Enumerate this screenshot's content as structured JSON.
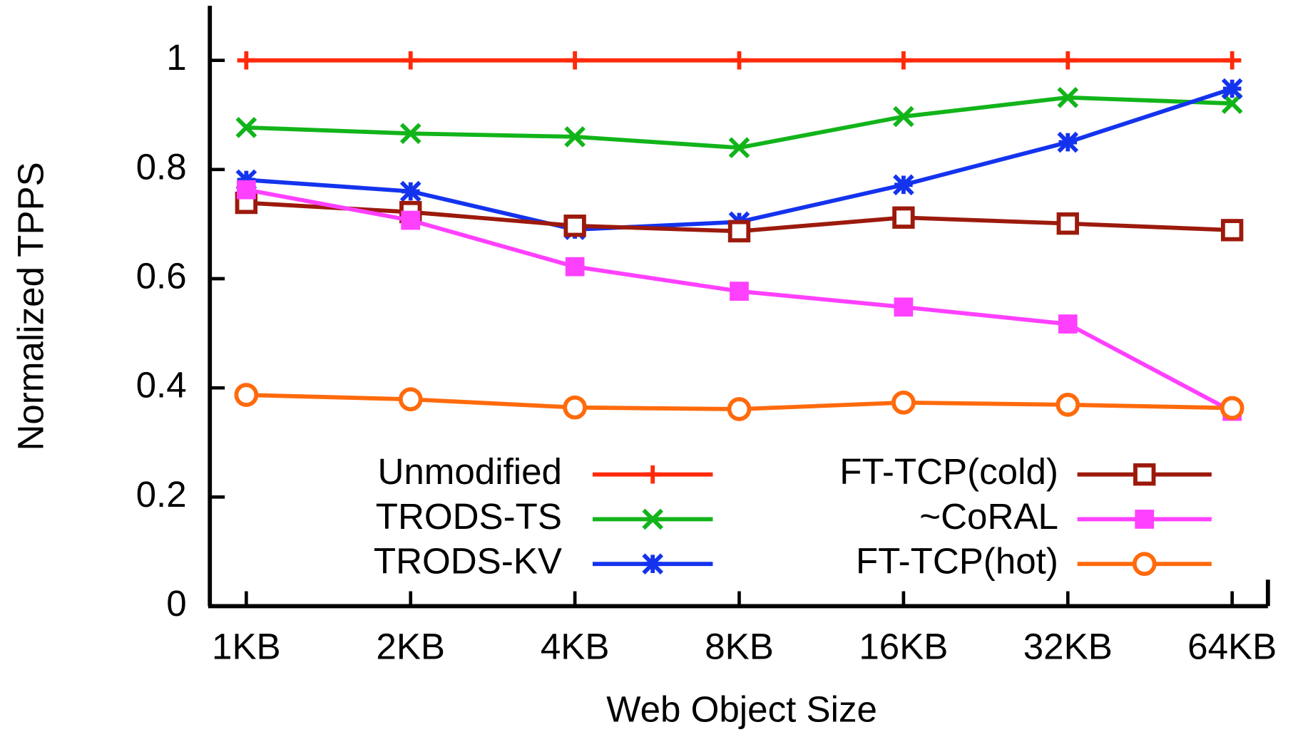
{
  "chart_data": {
    "type": "line",
    "x_label": "Web Object Size",
    "y_label": "Normalized TPPS",
    "categories": [
      "1KB",
      "2KB",
      "4KB",
      "8KB",
      "16KB",
      "32KB",
      "64KB"
    ],
    "ylim": [
      0,
      1.1
    ],
    "yticks": [
      0,
      0.2,
      0.4,
      0.6,
      0.8,
      1
    ],
    "legend": "inside-bottom",
    "series": [
      {
        "name": "Unmodified",
        "color": "#ff2a0a",
        "marker": "plus",
        "values": [
          1,
          1,
          1,
          1,
          1,
          1,
          1
        ]
      },
      {
        "name": "TRODS-TS",
        "color": "#12b41a",
        "marker": "cross",
        "values": [
          0.877,
          0.866,
          0.86,
          0.84,
          0.897,
          0.932,
          0.921
        ]
      },
      {
        "name": "TRODS-KV",
        "color": "#1433ee",
        "marker": "star",
        "values": [
          0.781,
          0.76,
          0.69,
          0.704,
          0.772,
          0.85,
          0.948
        ]
      },
      {
        "name": "FT-TCP(cold)",
        "color": "#9c1a0c",
        "marker": "open-square",
        "values": [
          0.739,
          0.722,
          0.697,
          0.687,
          0.712,
          0.701,
          0.689
        ]
      },
      {
        "name": "~CoRAL",
        "color": "#ff40ff",
        "marker": "filled-square",
        "values": [
          0.763,
          0.707,
          0.622,
          0.577,
          0.548,
          0.517,
          0.357
        ]
      },
      {
        "name": "FT-TCP(hot)",
        "color": "#ff6a0c",
        "marker": "open-circle",
        "values": [
          0.387,
          0.379,
          0.364,
          0.361,
          0.373,
          0.369,
          0.363
        ]
      }
    ]
  }
}
